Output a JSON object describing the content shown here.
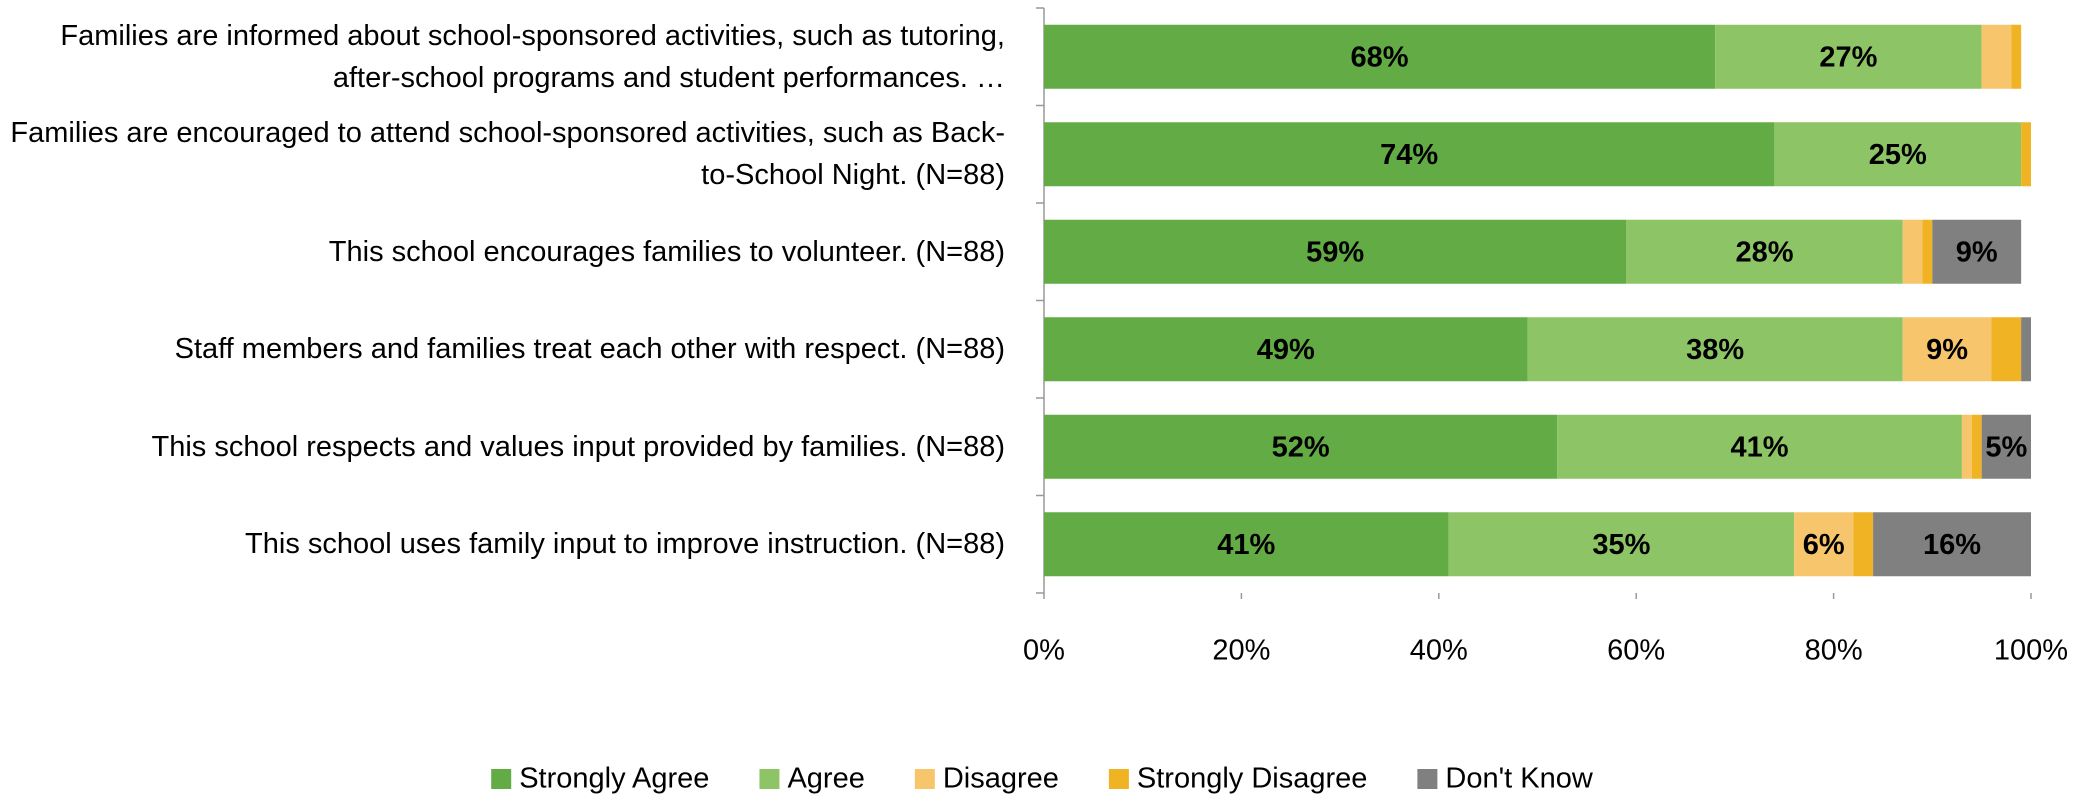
{
  "chart_data": {
    "type": "stacked_barh",
    "categories": [
      "Families are informed about school-sponsored activities, such as tutoring, after-school programs and student performances. …",
      "Families are encouraged to attend school-sponsored activities, such as Back-to-School Night. (N=88)",
      "This school encourages families to volunteer. (N=88)",
      "Staff members and families treat each other with respect. (N=88)",
      "This school respects and values input provided by families. (N=88)",
      "This school uses family input to improve instruction. (N=88)"
    ],
    "series": [
      {
        "name": "Strongly Agree",
        "color": "#62ab45",
        "values": [
          68,
          74,
          59,
          49,
          52,
          41
        ],
        "value_labels": [
          "68%",
          "74%",
          "59%",
          "49%",
          "52%",
          "41%"
        ]
      },
      {
        "name": "Agree",
        "color": "#8dc465",
        "values": [
          27,
          25,
          28,
          38,
          41,
          35
        ],
        "value_labels": [
          "27%",
          "25%",
          "28%",
          "38%",
          "41%",
          "35%"
        ]
      },
      {
        "name": "Disagree",
        "color": "#f7c56b",
        "values": [
          3,
          0,
          2,
          9,
          1,
          6
        ],
        "value_labels": [
          null,
          null,
          null,
          "9%",
          null,
          "6%"
        ]
      },
      {
        "name": "Strongly Disagree",
        "color": "#f0b323",
        "values": [
          1,
          1,
          1,
          3,
          1,
          2
        ],
        "value_labels": [
          null,
          null,
          null,
          null,
          null,
          null
        ]
      },
      {
        "name": "Don't Know",
        "color": "#808080",
        "values": [
          0,
          0,
          9,
          1,
          5,
          16
        ],
        "value_labels": [
          null,
          null,
          "9%",
          null,
          "5%",
          "16%"
        ]
      }
    ],
    "xlim": [
      0,
      100
    ],
    "xticks": [
      {
        "value": 0,
        "label": "0%"
      },
      {
        "value": 20,
        "label": "20%"
      },
      {
        "value": 40,
        "label": "40%"
      },
      {
        "value": 60,
        "label": "60%"
      },
      {
        "value": 80,
        "label": "80%"
      },
      {
        "value": 100,
        "label": "100%"
      }
    ],
    "legend": "bottom"
  }
}
